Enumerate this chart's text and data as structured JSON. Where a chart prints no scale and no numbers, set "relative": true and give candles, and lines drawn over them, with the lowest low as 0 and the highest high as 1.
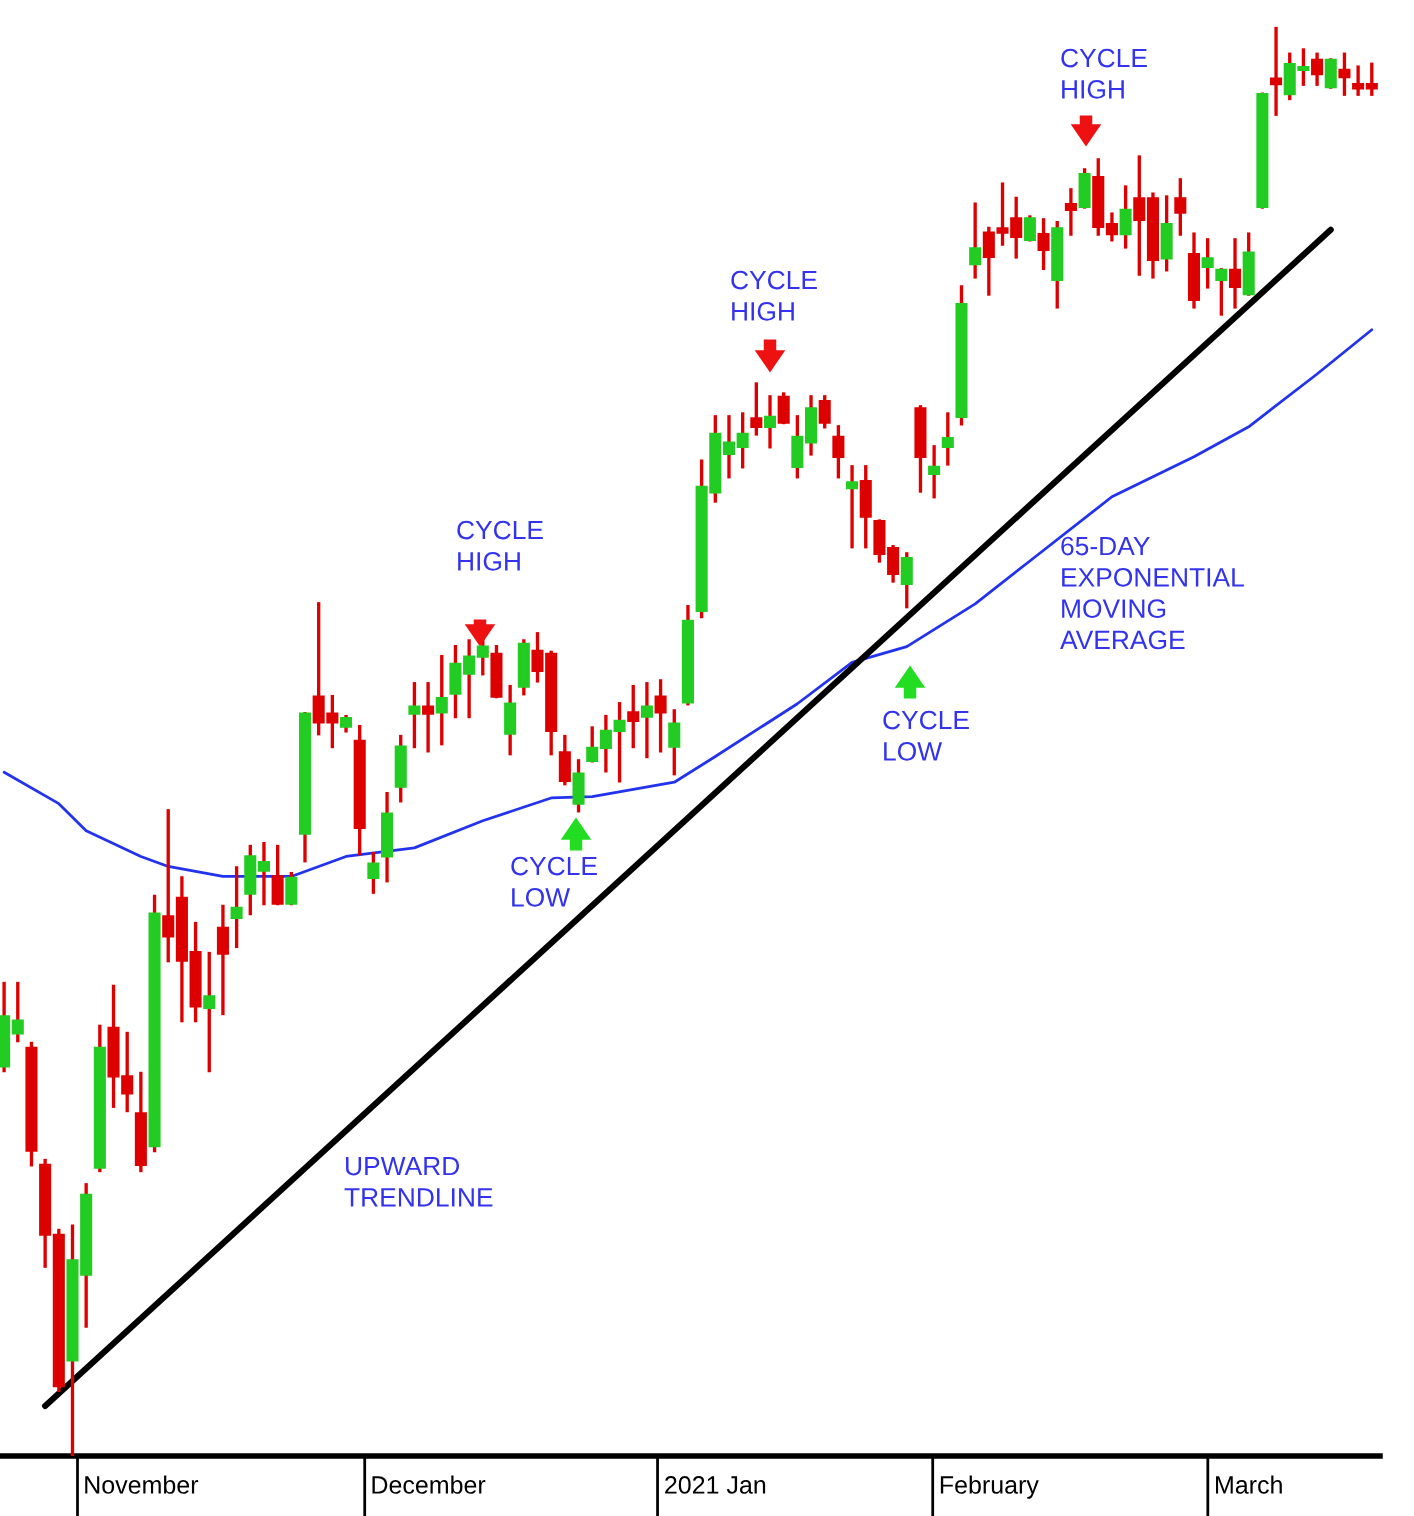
{
  "chart_data": {
    "type": "candlestick",
    "relative": true,
    "categories": [
      null,
      null,
      null,
      null,
      null,
      null,
      null,
      null,
      null,
      null,
      "November",
      null,
      null,
      null,
      null,
      null,
      null,
      null,
      null,
      null,
      null,
      null,
      null,
      null,
      null,
      null,
      null,
      null,
      null,
      null,
      null,
      "December",
      null,
      null,
      null,
      null,
      null,
      null,
      null,
      null,
      null,
      null,
      null,
      null,
      null,
      null,
      null,
      null,
      null,
      null,
      null,
      null,
      "2021 Jan",
      null,
      null,
      null,
      null,
      null,
      null,
      null,
      null,
      null,
      null,
      null,
      null,
      null,
      null,
      null,
      null,
      null,
      null,
      null,
      "February",
      null,
      null,
      null,
      null,
      null,
      null,
      null,
      null,
      null,
      null,
      null,
      null,
      null,
      null,
      null,
      null,
      null,
      null,
      "March",
      null,
      null,
      null,
      null,
      null,
      null,
      null,
      null,
      null
    ],
    "ohlc": [
      [
        0.273,
        0.331,
        0.27,
        0.308
      ],
      [
        0.296,
        0.331,
        0.291,
        0.305
      ],
      [
        0.286,
        0.289,
        0.204,
        0.214
      ],
      [
        0.204,
        0.207,
        0.133,
        0.155
      ],
      [
        0.155,
        0.158,
        0.046,
        0.049
      ],
      [
        0.067,
        0.161,
        0,
        0.137
      ],
      [
        0.127,
        0.19,
        0.091,
        0.183
      ],
      [
        0.202,
        0.301,
        0.2,
        0.286
      ],
      [
        0.3,
        0.329,
        0.245,
        0.266
      ],
      [
        0.266,
        0.296,
        0.242,
        0.254
      ],
      [
        0.24,
        0.268,
        0.2,
        0.204
      ],
      [
        0.217,
        0.392,
        0.214,
        0.38
      ],
      [
        0.378,
        0.452,
        0.347,
        0.364
      ],
      [
        0.391,
        0.405,
        0.305,
        0.347
      ],
      [
        0.353,
        0.373,
        0.305,
        0.315
      ],
      [
        0.314,
        0.352,
        0.27,
        0.322
      ],
      [
        0.37,
        0.385,
        0.31,
        0.352
      ],
      [
        0.377,
        0.412,
        0.357,
        0.384
      ],
      [
        0.394,
        0.427,
        0.38,
        0.42
      ],
      [
        0.41,
        0.429,
        0.387,
        0.416
      ],
      [
        0.406,
        0.427,
        0.387,
        0.387
      ],
      [
        0.387,
        0.408,
        0.387,
        0.405
      ],
      [
        0.436,
        0.52,
        0.417,
        0.52
      ],
      [
        0.532,
        0.597,
        0.506,
        0.514
      ],
      [
        0.52,
        0.532,
        0.497,
        0.514
      ],
      [
        0.511,
        0.518,
        0.508,
        0.517
      ],
      [
        0.501,
        0.511,
        0.422,
        0.44
      ],
      [
        0.405,
        0.422,
        0.395,
        0.415
      ],
      [
        0.42,
        0.464,
        0.403,
        0.45
      ],
      [
        0.469,
        0.504,
        0.459,
        0.497
      ],
      [
        0.52,
        0.541,
        0.497,
        0.525
      ],
      [
        0.525,
        0.541,
        0.494,
        0.52
      ],
      [
        0.521,
        0.56,
        0.499,
        0.531
      ],
      [
        0.534,
        0.567,
        0.518,
        0.555
      ],
      [
        0.548,
        0.571,
        0.518,
        0.56
      ],
      [
        0.56,
        0.581,
        0.548,
        0.567
      ],
      [
        0.562,
        0.567,
        0.532,
        0.532
      ],
      [
        0.506,
        0.539,
        0.492,
        0.527
      ],
      [
        0.539,
        0.571,
        0.534,
        0.569
      ],
      [
        0.564,
        0.576,
        0.543,
        0.55
      ],
      [
        0.562,
        0.563,
        0.492,
        0.508
      ],
      [
        0.493,
        0.504,
        0.471,
        0.473
      ],
      [
        0.457,
        0.487,
        0.452,
        0.478
      ],
      [
        0.487,
        0.51,
        0.487,
        0.496
      ],
      [
        0.496,
        0.518,
        0.48,
        0.508
      ],
      [
        0.508,
        0.527,
        0.473,
        0.515
      ],
      [
        0.521,
        0.539,
        0.497,
        0.515
      ],
      [
        0.518,
        0.541,
        0.49,
        0.525
      ],
      [
        0.532,
        0.543,
        0.494,
        0.521
      ],
      [
        0.497,
        0.522,
        0.478,
        0.513
      ],
      [
        0.528,
        0.595,
        0.527,
        0.585
      ],
      [
        0.592,
        0.697,
        0.588,
        0.679
      ],
      [
        0.675,
        0.728,
        0.669,
        0.716
      ],
      [
        0.702,
        0.728,
        0.686,
        0.71
      ],
      [
        0.707,
        0.73,
        0.693,
        0.716
      ],
      [
        0.727,
        0.751,
        0.716,
        0.721
      ],
      [
        0.721,
        0.742,
        0.707,
        0.728
      ],
      [
        0.742,
        0.744,
        0.724,
        0.724
      ],
      [
        0.693,
        0.728,
        0.686,
        0.714
      ],
      [
        0.71,
        0.742,
        0.702,
        0.734
      ],
      [
        0.739,
        0.742,
        0.721,
        0.724
      ],
      [
        0.714,
        0.721,
        0.686,
        0.7
      ],
      [
        0.678,
        0.693,
        0.637,
        0.682
      ],
      [
        0.683,
        0.693,
        0.637,
        0.658
      ],
      [
        0.655,
        0.655,
        0.627,
        0.632
      ],
      [
        0.636,
        0.637,
        0.613,
        0.618
      ],
      [
        0.611,
        0.632,
        0.595,
        0.629
      ],
      [
        0.734,
        0.735,
        0.676,
        0.7
      ],
      [
        0.688,
        0.707,
        0.672,
        0.693
      ],
      [
        0.707,
        0.73,
        0.695,
        0.713
      ],
      [
        0.728,
        0.819,
        0.723,
        0.807
      ],
      [
        0.835,
        0.877,
        0.826,
        0.846
      ],
      [
        0.857,
        0.86,
        0.814,
        0.84
      ],
      [
        0.86,
        0.891,
        0.849,
        0.857
      ],
      [
        0.867,
        0.881,
        0.84,
        0.854
      ],
      [
        0.852,
        0.868,
        0.852,
        0.867
      ],
      [
        0.856,
        0.866,
        0.832,
        0.845
      ],
      [
        0.824,
        0.864,
        0.805,
        0.86
      ],
      [
        0.877,
        0.887,
        0.856,
        0.873
      ],
      [
        0.875,
        0.901,
        0.875,
        0.898
      ],
      [
        0.896,
        0.908,
        0.856,
        0.861
      ],
      [
        0.863,
        0.87,
        0.852,
        0.856
      ],
      [
        0.856,
        0.889,
        0.847,
        0.873
      ],
      [
        0.881,
        0.91,
        0.828,
        0.866
      ],
      [
        0.881,
        0.884,
        0.826,
        0.838
      ],
      [
        0.839,
        0.882,
        0.831,
        0.863
      ],
      [
        0.881,
        0.894,
        0.856,
        0.871
      ],
      [
        0.842,
        0.856,
        0.805,
        0.81
      ],
      [
        0.833,
        0.852,
        0.819,
        0.839
      ],
      [
        0.824,
        0.831,
        0.8,
        0.831
      ],
      [
        0.831,
        0.852,
        0.805,
        0.819
      ],
      [
        0.814,
        0.856,
        0.814,
        0.843
      ],
      [
        0.875,
        0.954,
        0.875,
        0.954
      ],
      [
        0.965,
        1,
        0.94,
        0.961
      ],
      [
        0.954,
        0.982,
        0.951,
        0.975
      ],
      [
        0.971,
        0.985,
        0.961,
        0.973
      ],
      [
        0.978,
        0.982,
        0.961,
        0.968
      ],
      [
        0.959,
        0.978,
        0.959,
        0.978
      ],
      [
        0.971,
        0.982,
        0.954,
        0.966
      ],
      [
        0.961,
        0.973,
        0.954,
        0.958
      ],
      [
        0.961,
        0.975,
        0.954,
        0.958
      ]
    ],
    "colors": [
      "#22cc22",
      "#22cc22",
      "#dd0000",
      "#dd0000",
      "#dd0000",
      "#22cc22",
      "#22cc22",
      "#22cc22",
      "#dd0000",
      "#dd0000",
      "#dd0000",
      "#22cc22",
      "#dd0000",
      "#dd0000",
      "#dd0000",
      "#22cc22",
      "#dd0000",
      "#22cc22",
      "#22cc22",
      "#22cc22",
      "#dd0000",
      "#22cc22",
      "#22cc22",
      "#dd0000",
      "#dd0000",
      "#22cc22",
      "#dd0000",
      "#22cc22",
      "#22cc22",
      "#22cc22",
      "#22cc22",
      "#dd0000",
      "#22cc22",
      "#22cc22",
      "#22cc22",
      "#22cc22",
      "#dd0000",
      "#22cc22",
      "#22cc22",
      "#dd0000",
      "#dd0000",
      "#dd0000",
      "#22cc22",
      "#22cc22",
      "#22cc22",
      "#22cc22",
      "#dd0000",
      "#22cc22",
      "#dd0000",
      "#22cc22",
      "#22cc22",
      "#22cc22",
      "#22cc22",
      "#22cc22",
      "#22cc22",
      "#dd0000",
      "#22cc22",
      "#dd0000",
      "#22cc22",
      "#22cc22",
      "#dd0000",
      "#dd0000",
      "#22cc22",
      "#dd0000",
      "#dd0000",
      "#dd0000",
      "#22cc22",
      "#dd0000",
      "#22cc22",
      "#22cc22",
      "#22cc22",
      "#22cc22",
      "#dd0000",
      "#dd0000",
      "#dd0000",
      "#22cc22",
      "#dd0000",
      "#22cc22",
      "#dd0000",
      "#22cc22",
      "#dd0000",
      "#dd0000",
      "#22cc22",
      "#dd0000",
      "#dd0000",
      "#22cc22",
      "#dd0000",
      "#dd0000",
      "#22cc22",
      "#22cc22",
      "#dd0000",
      "#22cc22",
      "#22cc22",
      "#dd0000",
      "#22cc22",
      "#22cc22",
      "#dd0000",
      "#22cc22",
      "#dd0000",
      "#dd0000",
      "#dd0000"
    ],
    "series": [
      {
        "type": "line",
        "color": "#2233ee",
        "values": [
          0.479,
          null,
          null,
          null,
          0.457,
          null,
          0.438,
          null,
          null,
          null,
          0.42,
          null,
          0.413,
          null,
          null,
          null,
          0.406,
          null,
          null,
          null,
          null,
          0.406,
          null,
          null,
          null,
          0.42,
          null,
          null,
          null,
          null,
          0.426,
          null,
          null,
          null,
          null,
          0.445,
          null,
          null,
          null,
          null,
          0.461,
          null,
          null,
          0.462,
          null,
          null,
          null,
          null,
          null,
          0.472,
          null,
          null,
          0.49,
          null,
          null,
          null,
          null,
          null,
          0.527,
          null,
          null,
          null,
          0.556,
          null,
          null,
          null,
          0.567,
          null,
          null,
          null,
          null,
          0.597,
          null,
          null,
          null,
          0.627,
          null,
          null,
          null,
          null,
          null,
          0.672,
          null,
          null,
          null,
          null,
          null,
          0.7,
          null,
          null,
          null,
          0.721,
          null,
          null,
          null,
          null,
          0.758,
          null,
          null,
          null,
          0.789
        ]
      },
      {
        "type": "line",
        "color": "#000000",
        "values": [
          null,
          null,
          null,
          0.035,
          null,
          null,
          null,
          null,
          null,
          null,
          null,
          null,
          null,
          null,
          null,
          null,
          null,
          null,
          null,
          null,
          null,
          null,
          null,
          null,
          null,
          null,
          null,
          null,
          null,
          null,
          null,
          null,
          null,
          null,
          null,
          null,
          null,
          null,
          null,
          null,
          null,
          null,
          null,
          null,
          null,
          null,
          null,
          null,
          null,
          null,
          null,
          null,
          null,
          null,
          null,
          null,
          null,
          null,
          null,
          null,
          null,
          null,
          null,
          null,
          null,
          null,
          null,
          null,
          null,
          null,
          null,
          null,
          null,
          null,
          null,
          null,
          null,
          null,
          null,
          null,
          null,
          null,
          null,
          null,
          null,
          null,
          null,
          null,
          null,
          null,
          null,
          null,
          null,
          null,
          null,
          null,
          null,
          0.859,
          null,
          null,
          null
        ]
      }
    ],
    "annotations": [
      "CYCLE\nHIGH",
      "CYCLE\nHIGH",
      "CYCLE\nHIGH",
      "CYCLE\nLOW",
      "CYCLE\nLOW",
      "UPWARD\nTRENDLINE",
      "65-DAY\nEXPONENTIAL\nMOVING\nAVERAGE"
    ]
  }
}
